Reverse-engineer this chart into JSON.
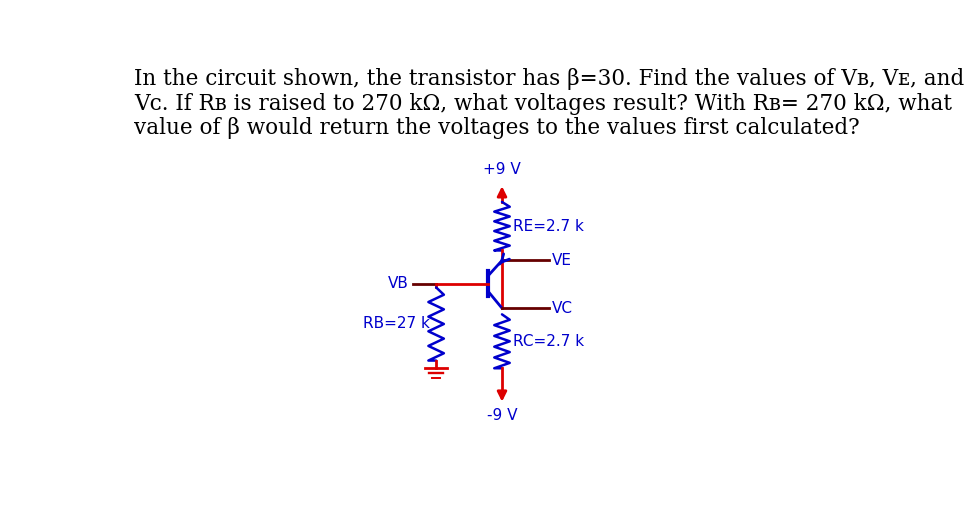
{
  "bg_color": "#ffffff",
  "text_color": "#000000",
  "red_color": "#dd0000",
  "blue_color": "#0000cc",
  "dark_red": "#660000",
  "vcc_label": "+9 V",
  "vee_label": "-9 V",
  "re_label": "RE=2.7 k",
  "rc_label": "RC=2.7 k",
  "rb_label": "RB=27 k",
  "vb_label": "VB",
  "ve_label": "VE",
  "vc_label": "VC",
  "title_fontsize": 15.5,
  "circuit_fontsize": 11
}
